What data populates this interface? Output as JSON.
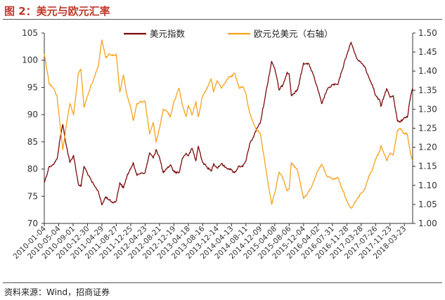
{
  "figure": {
    "title": "图 2：美元与欧元汇率",
    "source": "资料来源：Wind，招商证券"
  },
  "colors": {
    "title": "#c0392b",
    "usd_index": "#7b0a0a",
    "eurusd": "#f5a21b",
    "axis": "#333333"
  },
  "chart_data": {
    "type": "line",
    "title": "",
    "xlabel": "",
    "ylabel_left": "",
    "ylabel_right": "",
    "x_ticks": [
      "2010-01-04",
      "2010-05-04",
      "2010-09-01",
      "2010-12-30",
      "2011-04-29",
      "2011-08-27",
      "2011-12-25",
      "2012-04-23",
      "2012-08-21",
      "2012-12-19",
      "2013-04-18",
      "2013-08-16",
      "2013-12-14",
      "2014-04-13",
      "2014-08-11",
      "2014-12-09",
      "2015-04-08",
      "2015-08-06",
      "2015-12-04",
      "2016-04-02",
      "2016-07-31",
      "2016-11-28",
      "2017-03-28",
      "2017-07-26",
      "2017-11-23",
      "2018-03-23"
    ],
    "x_range": [
      "2010-01-04",
      "2018-05-31"
    ],
    "y_left": {
      "min": 70,
      "max": 105,
      "ticks": [
        70,
        75,
        80,
        85,
        90,
        95,
        100,
        105
      ]
    },
    "y_right": {
      "min": 1.0,
      "max": 1.5,
      "ticks": [
        "1.00",
        "1.05",
        "1.10",
        "1.15",
        "1.20",
        "1.25",
        "1.30",
        "1.35",
        "1.40",
        "1.45",
        "1.50"
      ]
    },
    "legend_position": "top-center",
    "grid": false,
    "series": [
      {
        "name": "美元指数",
        "axis": "left",
        "color": "#7b0a0a",
        "points": [
          [
            "2010-01-04",
            77.5
          ],
          [
            "2010-02-15",
            80.5
          ],
          [
            "2010-03-20",
            80.8
          ],
          [
            "2010-04-20",
            81.8
          ],
          [
            "2010-05-20",
            86.2
          ],
          [
            "2010-06-07",
            88.2
          ],
          [
            "2010-07-05",
            84.5
          ],
          [
            "2010-08-05",
            81.2
          ],
          [
            "2010-09-05",
            82.5
          ],
          [
            "2010-10-15",
            77.2
          ],
          [
            "2010-11-05",
            76.8
          ],
          [
            "2010-12-01",
            80.5
          ],
          [
            "2010-12-30",
            79.2
          ],
          [
            "2011-01-31",
            77.8
          ],
          [
            "2011-02-28",
            76.8
          ],
          [
            "2011-03-31",
            75.9
          ],
          [
            "2011-04-29",
            73.4
          ],
          [
            "2011-05-31",
            74.9
          ],
          [
            "2011-06-30",
            74.3
          ],
          [
            "2011-07-31",
            73.8
          ],
          [
            "2011-08-27",
            74.2
          ],
          [
            "2011-09-25",
            77.5
          ],
          [
            "2011-10-25",
            76.5
          ],
          [
            "2011-11-25",
            78.8
          ],
          [
            "2011-12-25",
            80.0
          ],
          [
            "2012-01-15",
            81.2
          ],
          [
            "2012-02-15",
            78.8
          ],
          [
            "2012-03-20",
            79.3
          ],
          [
            "2012-04-23",
            79.3
          ],
          [
            "2012-05-31",
            83.0
          ],
          [
            "2012-06-30",
            82.0
          ],
          [
            "2012-07-24",
            83.6
          ],
          [
            "2012-08-21",
            82.1
          ],
          [
            "2012-09-21",
            79.3
          ],
          [
            "2012-10-21",
            80.0
          ],
          [
            "2012-11-20",
            80.8
          ],
          [
            "2012-12-19",
            79.5
          ],
          [
            "2013-01-31",
            79.3
          ],
          [
            "2013-02-28",
            82.0
          ],
          [
            "2013-03-31",
            82.9
          ],
          [
            "2013-04-18",
            82.4
          ],
          [
            "2013-05-20",
            83.8
          ],
          [
            "2013-06-20",
            81.5
          ],
          [
            "2013-07-10",
            84.2
          ],
          [
            "2013-08-16",
            81.2
          ],
          [
            "2013-09-15",
            80.5
          ],
          [
            "2013-10-25",
            79.6
          ],
          [
            "2013-11-15",
            81.0
          ],
          [
            "2013-12-14",
            80.2
          ],
          [
            "2014-01-20",
            81.0
          ],
          [
            "2014-02-20",
            80.3
          ],
          [
            "2014-03-20",
            80.1
          ],
          [
            "2014-04-13",
            79.8
          ],
          [
            "2014-05-08",
            79.3
          ],
          [
            "2014-06-15",
            80.6
          ],
          [
            "2014-07-15",
            80.4
          ],
          [
            "2014-08-11",
            81.5
          ],
          [
            "2014-09-10",
            84.5
          ],
          [
            "2014-10-10",
            85.8
          ],
          [
            "2014-11-10",
            87.5
          ],
          [
            "2014-12-09",
            88.5
          ],
          [
            "2015-01-20",
            93.5
          ],
          [
            "2015-03-13",
            99.8
          ],
          [
            "2015-04-08",
            98.5
          ],
          [
            "2015-05-15",
            94.5
          ],
          [
            "2015-06-15",
            95.5
          ],
          [
            "2015-07-20",
            97.8
          ],
          [
            "2015-08-06",
            97.5
          ],
          [
            "2015-08-24",
            93.5
          ],
          [
            "2015-10-15",
            94.5
          ],
          [
            "2015-12-04",
            99.5
          ],
          [
            "2016-01-20",
            99.2
          ],
          [
            "2016-02-20",
            97.5
          ],
          [
            "2016-04-02",
            94.5
          ],
          [
            "2016-05-03",
            92.0
          ],
          [
            "2016-06-15",
            94.5
          ],
          [
            "2016-07-31",
            95.5
          ],
          [
            "2016-09-15",
            95.5
          ],
          [
            "2016-10-15",
            97.8
          ],
          [
            "2016-11-28",
            101.0
          ],
          [
            "2017-01-03",
            103.3
          ],
          [
            "2017-02-15",
            100.5
          ],
          [
            "2017-03-28",
            99.5
          ],
          [
            "2017-04-28",
            98.8
          ],
          [
            "2017-05-31",
            96.8
          ],
          [
            "2017-06-30",
            95.5
          ],
          [
            "2017-07-26",
            93.5
          ],
          [
            "2017-08-31",
            92.5
          ],
          [
            "2017-09-08",
            91.5
          ],
          [
            "2017-10-26",
            94.8
          ],
          [
            "2017-11-23",
            93.2
          ],
          [
            "2017-12-20",
            93.5
          ],
          [
            "2018-01-25",
            88.8
          ],
          [
            "2018-02-15",
            88.6
          ],
          [
            "2018-03-23",
            89.5
          ],
          [
            "2018-04-17",
            89.5
          ],
          [
            "2018-05-15",
            93.5
          ],
          [
            "2018-05-31",
            94.8
          ]
        ]
      },
      {
        "name": "欧元兑美元（右轴）",
        "axis": "right",
        "color": "#f5a21b",
        "points": [
          [
            "2010-01-04",
            1.445
          ],
          [
            "2010-02-15",
            1.365
          ],
          [
            "2010-03-20",
            1.355
          ],
          [
            "2010-04-20",
            1.335
          ],
          [
            "2010-05-20",
            1.245
          ],
          [
            "2010-06-07",
            1.193
          ],
          [
            "2010-07-05",
            1.255
          ],
          [
            "2010-08-05",
            1.315
          ],
          [
            "2010-09-05",
            1.285
          ],
          [
            "2010-10-15",
            1.395
          ],
          [
            "2010-11-05",
            1.405
          ],
          [
            "2010-12-01",
            1.305
          ],
          [
            "2010-12-30",
            1.335
          ],
          [
            "2011-01-31",
            1.365
          ],
          [
            "2011-02-28",
            1.385
          ],
          [
            "2011-03-31",
            1.415
          ],
          [
            "2011-04-29",
            1.482
          ],
          [
            "2011-05-31",
            1.435
          ],
          [
            "2011-06-30",
            1.445
          ],
          [
            "2011-07-31",
            1.44
          ],
          [
            "2011-08-27",
            1.445
          ],
          [
            "2011-09-25",
            1.345
          ],
          [
            "2011-10-25",
            1.39
          ],
          [
            "2011-11-25",
            1.335
          ],
          [
            "2011-12-25",
            1.305
          ],
          [
            "2012-01-15",
            1.27
          ],
          [
            "2012-02-15",
            1.315
          ],
          [
            "2012-03-20",
            1.32
          ],
          [
            "2012-04-23",
            1.32
          ],
          [
            "2012-05-31",
            1.235
          ],
          [
            "2012-06-30",
            1.265
          ],
          [
            "2012-07-24",
            1.213
          ],
          [
            "2012-08-21",
            1.25
          ],
          [
            "2012-09-21",
            1.3
          ],
          [
            "2012-10-21",
            1.295
          ],
          [
            "2012-11-20",
            1.28
          ],
          [
            "2012-12-19",
            1.32
          ],
          [
            "2013-01-31",
            1.355
          ],
          [
            "2013-02-28",
            1.31
          ],
          [
            "2013-03-31",
            1.28
          ],
          [
            "2013-04-18",
            1.31
          ],
          [
            "2013-05-20",
            1.285
          ],
          [
            "2013-06-20",
            1.32
          ],
          [
            "2013-07-10",
            1.28
          ],
          [
            "2013-08-16",
            1.335
          ],
          [
            "2013-09-15",
            1.35
          ],
          [
            "2013-10-25",
            1.38
          ],
          [
            "2013-11-15",
            1.345
          ],
          [
            "2013-12-14",
            1.375
          ],
          [
            "2014-01-20",
            1.355
          ],
          [
            "2014-02-20",
            1.37
          ],
          [
            "2014-03-20",
            1.385
          ],
          [
            "2014-04-13",
            1.385
          ],
          [
            "2014-05-08",
            1.395
          ],
          [
            "2014-06-15",
            1.355
          ],
          [
            "2014-07-15",
            1.36
          ],
          [
            "2014-08-11",
            1.34
          ],
          [
            "2014-09-10",
            1.29
          ],
          [
            "2014-10-10",
            1.265
          ],
          [
            "2014-11-10",
            1.245
          ],
          [
            "2014-12-09",
            1.235
          ],
          [
            "2015-01-20",
            1.15
          ],
          [
            "2015-03-13",
            1.05
          ],
          [
            "2015-04-08",
            1.08
          ],
          [
            "2015-05-15",
            1.135
          ],
          [
            "2015-06-15",
            1.12
          ],
          [
            "2015-07-20",
            1.085
          ],
          [
            "2015-08-06",
            1.09
          ],
          [
            "2015-08-24",
            1.16
          ],
          [
            "2015-10-15",
            1.14
          ],
          [
            "2015-12-04",
            1.065
          ],
          [
            "2016-01-20",
            1.085
          ],
          [
            "2016-02-20",
            1.105
          ],
          [
            "2016-04-02",
            1.14
          ],
          [
            "2016-05-03",
            1.155
          ],
          [
            "2016-06-15",
            1.125
          ],
          [
            "2016-07-31",
            1.115
          ],
          [
            "2016-09-15",
            1.12
          ],
          [
            "2016-10-15",
            1.095
          ],
          [
            "2016-11-28",
            1.06
          ],
          [
            "2017-01-03",
            1.04
          ],
          [
            "2017-02-15",
            1.06
          ],
          [
            "2017-03-28",
            1.08
          ],
          [
            "2017-04-28",
            1.09
          ],
          [
            "2017-05-31",
            1.125
          ],
          [
            "2017-06-30",
            1.14
          ],
          [
            "2017-07-26",
            1.17
          ],
          [
            "2017-08-31",
            1.19
          ],
          [
            "2017-09-08",
            1.205
          ],
          [
            "2017-10-26",
            1.165
          ],
          [
            "2017-11-23",
            1.185
          ],
          [
            "2017-12-20",
            1.18
          ],
          [
            "2018-01-25",
            1.245
          ],
          [
            "2018-02-15",
            1.25
          ],
          [
            "2018-03-23",
            1.235
          ],
          [
            "2018-04-17",
            1.235
          ],
          [
            "2018-05-15",
            1.18
          ],
          [
            "2018-05-31",
            1.165
          ]
        ]
      }
    ]
  }
}
